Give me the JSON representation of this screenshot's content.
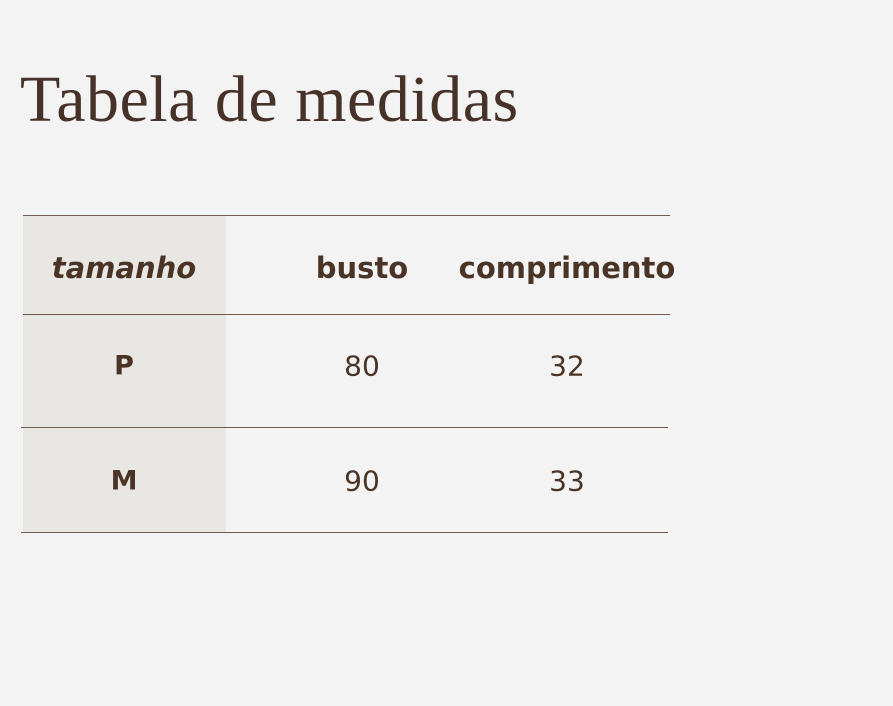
{
  "title": "Tabela de medidas",
  "table": {
    "headers": [
      "tamanho",
      "busto",
      "comprimento"
    ],
    "rows": [
      [
        "P",
        "80",
        "32"
      ],
      [
        "M",
        "90",
        "33"
      ]
    ]
  },
  "colors": {
    "text": "#4a3426",
    "background": "#f3f3f3",
    "first_column": "#e9e7e4"
  }
}
